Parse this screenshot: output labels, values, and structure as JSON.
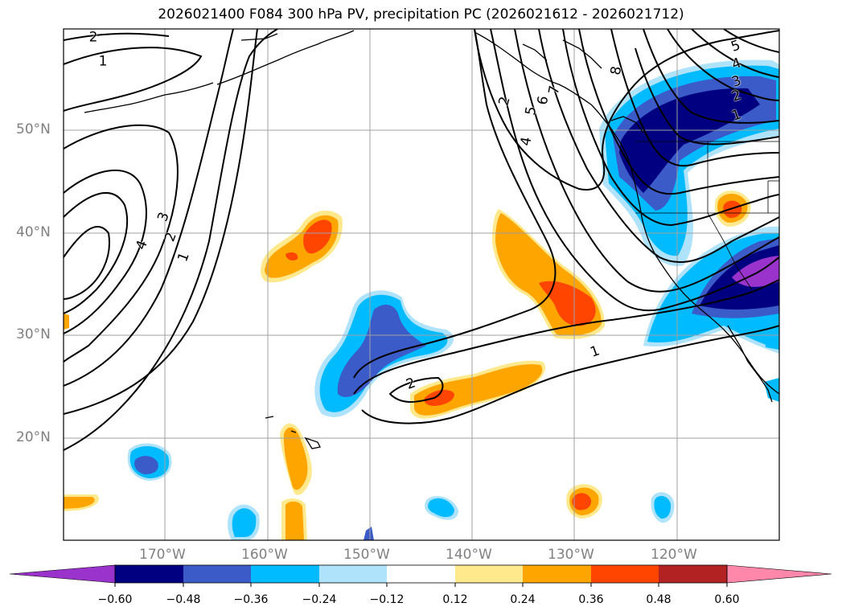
{
  "title": "2026021400 F084 300 hPa PV, precipitation PC (2026021612 - 2026021712)",
  "lat_labels": [
    "50°N",
    "40°N",
    "30°N",
    "20°N"
  ],
  "lon_labels": [
    "170°W",
    "160°W",
    "150°W",
    "140°W",
    "130°W",
    "120°W"
  ],
  "contour_labels": [
    "2",
    "1",
    "3",
    "4",
    "2",
    "1",
    "2",
    "4",
    "5",
    "6",
    "7",
    "8",
    "5",
    "4",
    "3",
    "2",
    "1",
    "1",
    "2"
  ],
  "colorbar": {
    "ticks": [
      "−0.60",
      "−0.48",
      "−0.36",
      "−0.24",
      "−0.12",
      "0.12",
      "0.24",
      "0.36",
      "0.48",
      "0.60"
    ],
    "colors": [
      "#9933cc",
      "#000080",
      "#3a5bc8",
      "#00bbff",
      "#aee3fb",
      "#ffffff",
      "#ffe98c",
      "#ffa500",
      "#ff4500",
      "#b22222",
      "#ff88aa"
    ]
  },
  "colors": {
    "contour": "#000000",
    "coastline": "#000000",
    "grid": "#a0a0a0"
  }
}
